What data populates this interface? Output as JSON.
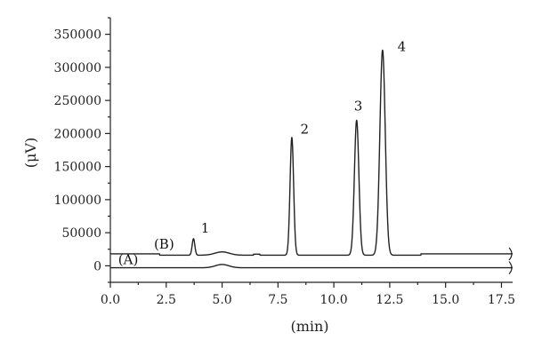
{
  "chart_data": {
    "type": "line",
    "xlabel": "(min)",
    "ylabel": "(μV)",
    "xlim": [
      0,
      18
    ],
    "ylim": [
      -25000,
      375000
    ],
    "x_ticks": [
      "0.0",
      "2.5",
      "5.0",
      "7.5",
      "10.0",
      "12.5",
      "15.0",
      "17.5"
    ],
    "x_tick_values": [
      0,
      2.5,
      5,
      7.5,
      10,
      12.5,
      15,
      17.5
    ],
    "y_ticks": [
      "0",
      "50000",
      "100000",
      "150000",
      "200000",
      "250000",
      "300000",
      "350000"
    ],
    "y_tick_values": [
      0,
      50000,
      100000,
      150000,
      200000,
      250000,
      300000,
      350000
    ],
    "grid": false,
    "series": [
      {
        "name": "(A)",
        "baseline": -3000,
        "bumps": [
          {
            "x": 5.0,
            "height": 5000,
            "width": 0.3
          }
        ]
      },
      {
        "name": "(B)",
        "baseline": 18000,
        "bumps": [
          {
            "x": 3.72,
            "height": 25000,
            "width": 0.06
          },
          {
            "x": 5.0,
            "height": 5000,
            "width": 0.32
          },
          {
            "x": 8.12,
            "height": 178000,
            "width": 0.08
          },
          {
            "x": 11.02,
            "height": 204000,
            "width": 0.1
          },
          {
            "x": 12.18,
            "height": 310000,
            "width": 0.12
          }
        ]
      }
    ],
    "annotations": [
      {
        "text": "1",
        "x": 4.05,
        "y": 50000
      },
      {
        "text": "2",
        "x": 8.5,
        "y": 200000
      },
      {
        "text": "3",
        "x": 10.9,
        "y": 235000
      },
      {
        "text": "4",
        "x": 12.85,
        "y": 325000
      }
    ]
  }
}
